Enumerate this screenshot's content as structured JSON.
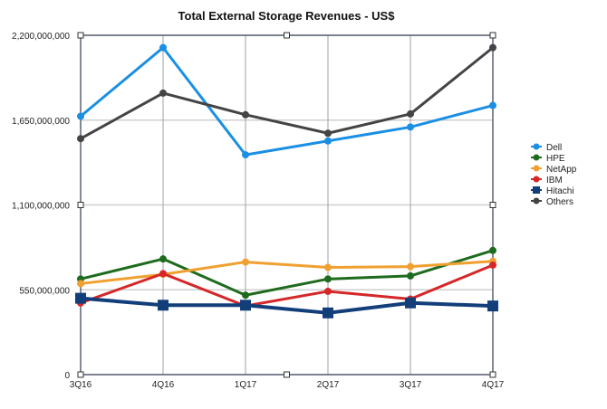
{
  "chart_data": {
    "type": "line",
    "title": "Total External Storage Revenues - US$",
    "xlabel": "",
    "ylabel": "",
    "categories": [
      "3Q16",
      "4Q16",
      "1Q17",
      "2Q17",
      "3Q17",
      "4Q17"
    ],
    "ylim": [
      0,
      2200000000
    ],
    "yticks": [
      0,
      550000000,
      1100000000,
      1650000000,
      2200000000
    ],
    "ytick_labels": [
      "0",
      "550,000,000",
      "1,100,000,000",
      "1,650,000,000",
      "2,200,000,000"
    ],
    "grid": true,
    "legend_position": "right",
    "series": [
      {
        "name": "Dell",
        "color": "#1a8fe3",
        "marker": "circle",
        "values": [
          1675000000,
          2120000000,
          1425000000,
          1515000000,
          1605000000,
          1745000000
        ]
      },
      {
        "name": "HPE",
        "color": "#1e6b1e",
        "marker": "circle",
        "values": [
          620000000,
          750000000,
          515000000,
          620000000,
          640000000,
          805000000
        ]
      },
      {
        "name": "NetApp",
        "color": "#f0a030",
        "marker": "circle",
        "values": [
          590000000,
          650000000,
          730000000,
          695000000,
          700000000,
          735000000
        ]
      },
      {
        "name": "IBM",
        "color": "#d62728",
        "marker": "circle",
        "values": [
          465000000,
          655000000,
          445000000,
          540000000,
          490000000,
          710000000
        ]
      },
      {
        "name": "Hitachi",
        "color": "#123f7a",
        "marker": "square",
        "values": [
          495000000,
          450000000,
          450000000,
          400000000,
          465000000,
          445000000
        ]
      },
      {
        "name": "Others",
        "color": "#444444",
        "marker": "circle",
        "values": [
          1530000000,
          1825000000,
          1685000000,
          1565000000,
          1690000000,
          2120000000
        ]
      }
    ]
  }
}
